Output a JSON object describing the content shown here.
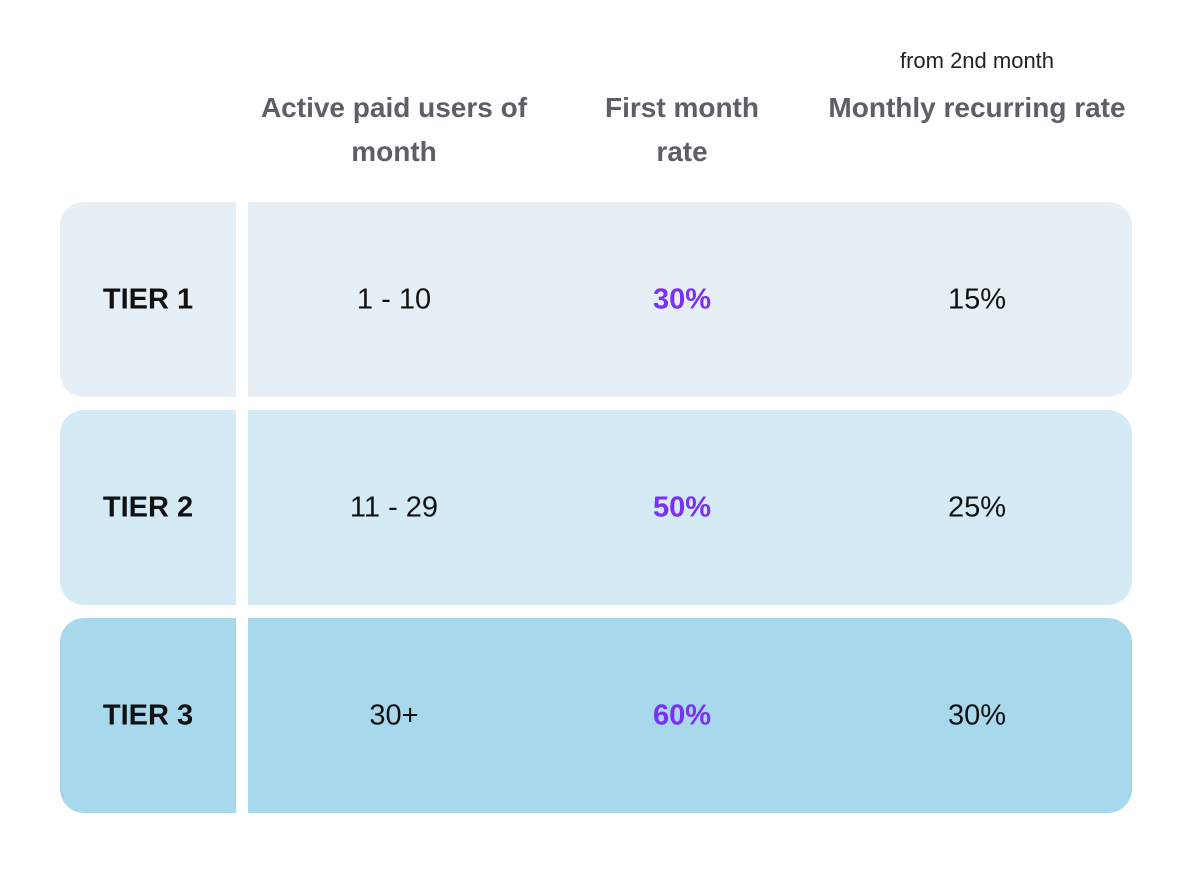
{
  "table": {
    "columns": [
      {
        "label": "Active paid users of month"
      },
      {
        "label": "First month rate"
      },
      {
        "note": "from 2nd month",
        "label": "Monthly recurring rate"
      }
    ],
    "rows": [
      [
        "TIER 1",
        "1 - 10",
        "30%",
        "15%"
      ],
      [
        "TIER 2",
        "11 - 29",
        "50%",
        "25%"
      ],
      [
        "TIER 3",
        "30+",
        "60%",
        "30%"
      ]
    ]
  }
}
